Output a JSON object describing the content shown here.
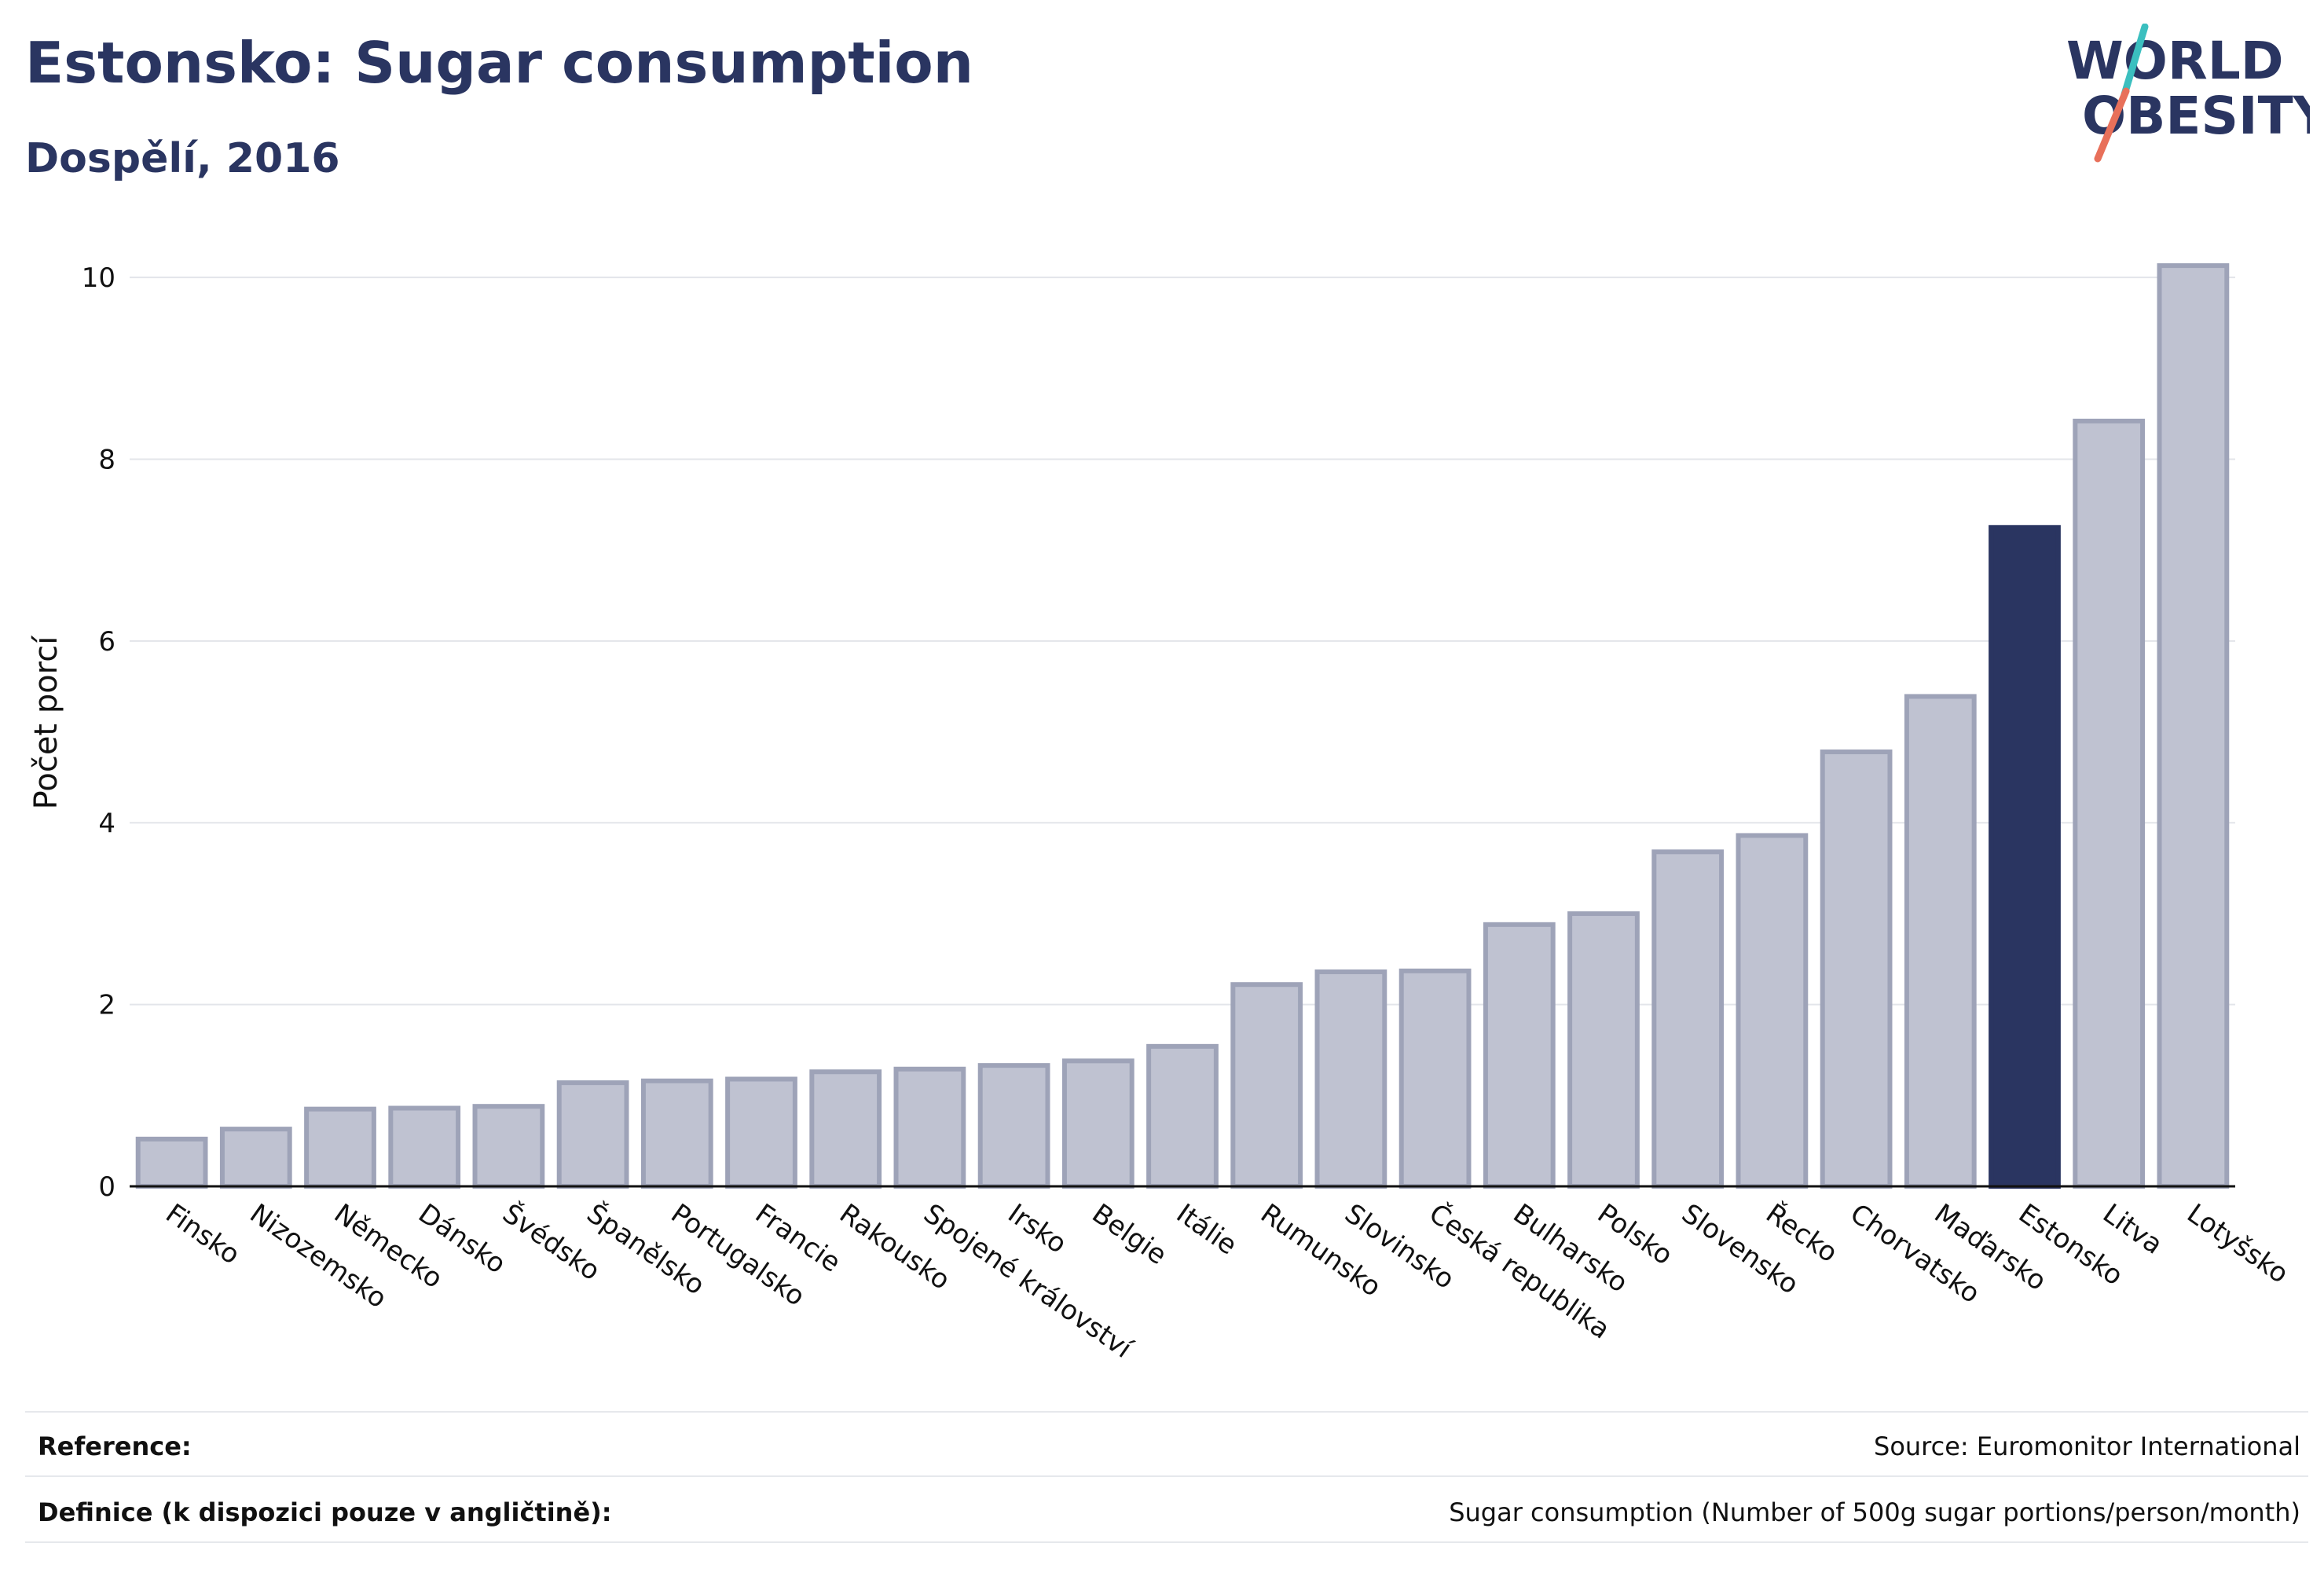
{
  "header": {
    "title": "Estonsko: Sugar consumption",
    "subtitle": "Dospělí, 2016"
  },
  "logo": {
    "line1": "WORLD",
    "line2": "OBESITY",
    "colors": {
      "text": "#2a3561",
      "slash_top": "#3bbfbf",
      "slash_bottom": "#e8705a"
    }
  },
  "colors": {
    "bar_default": "#bfc2d1",
    "bar_border": "#9ea3b8",
    "bar_highlight": "#2a3561",
    "grid": "#e3e5ea",
    "axis": "#111111"
  },
  "chart_data": {
    "type": "bar",
    "ylabel": "Počet porcí",
    "ylim": [
      0,
      10.2
    ],
    "yticks": [
      0,
      2,
      4,
      6,
      8,
      10
    ],
    "grid": true,
    "highlight": "Estonsko",
    "categories": [
      "Finsko",
      "Nizozemsko",
      "Německo",
      "Dánsko",
      "Švédsko",
      "Španělsko",
      "Portugalsko",
      "Francie",
      "Rakousko",
      "Spojené království",
      "Irsko",
      "Belgie",
      "Itálie",
      "Rumunsko",
      "Slovinsko",
      "Česká republika",
      "Bulharsko",
      "Polsko",
      "Slovensko",
      "Řecko",
      "Chorvatsko",
      "Maďarsko",
      "Estonsko",
      "Litva",
      "Lotyšsko"
    ],
    "values": [
      0.52,
      0.63,
      0.85,
      0.86,
      0.88,
      1.14,
      1.16,
      1.18,
      1.26,
      1.29,
      1.33,
      1.38,
      1.54,
      2.22,
      2.36,
      2.37,
      2.88,
      3.0,
      3.68,
      3.86,
      4.78,
      5.39,
      7.25,
      8.42,
      10.13
    ]
  },
  "footer": {
    "reference_label": "Reference:",
    "reference_value": "Source: Euromonitor International",
    "definition_label": "Definice (k dispozici pouze v angličtině):",
    "definition_value": "Sugar consumption (Number of 500g sugar portions/person/month)"
  }
}
